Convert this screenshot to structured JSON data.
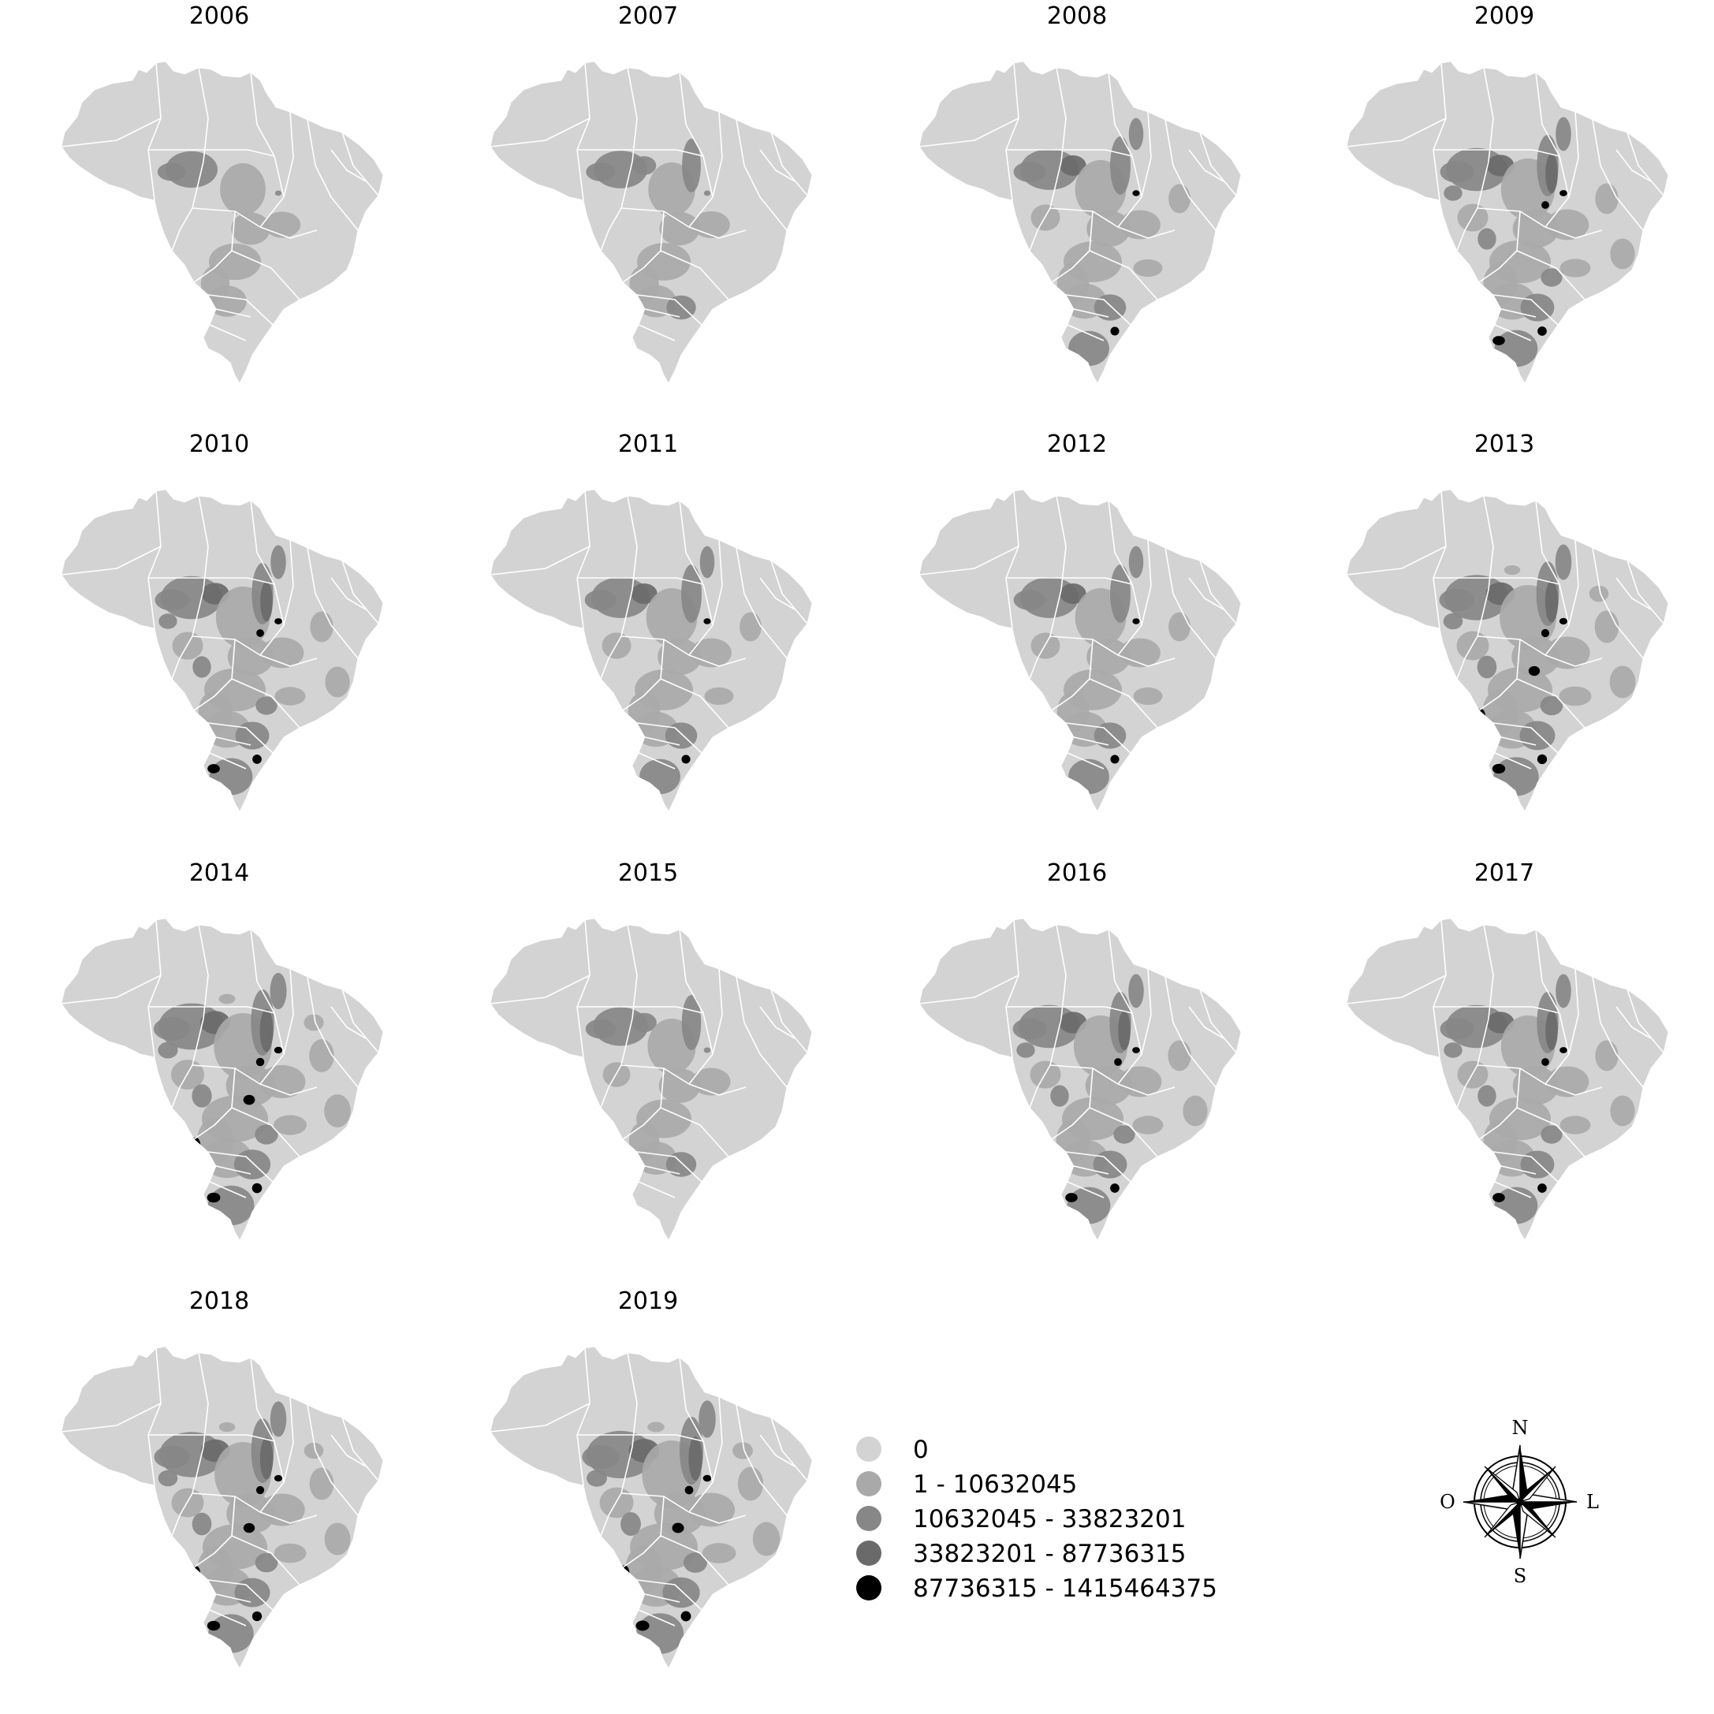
{
  "figure": {
    "panels": [
      {
        "year": "2006",
        "dark_level": 0.15
      },
      {
        "year": "2007",
        "dark_level": 0.2
      },
      {
        "year": "2008",
        "dark_level": 0.35
      },
      {
        "year": "2009",
        "dark_level": 0.45
      },
      {
        "year": "2010",
        "dark_level": 0.45
      },
      {
        "year": "2011",
        "dark_level": 0.35
      },
      {
        "year": "2012",
        "dark_level": 0.35
      },
      {
        "year": "2013",
        "dark_level": 0.55
      },
      {
        "year": "2014",
        "dark_level": 0.6
      },
      {
        "year": "2015",
        "dark_level": 0.25
      },
      {
        "year": "2016",
        "dark_level": 0.45
      },
      {
        "year": "2017",
        "dark_level": 0.45
      },
      {
        "year": "2018",
        "dark_level": 0.55
      },
      {
        "year": "2019",
        "dark_level": 0.65
      }
    ],
    "legend": [
      {
        "label": "0",
        "color": "#d3d3d3"
      },
      {
        "label": "1 - 10632045",
        "color": "#a9a9a9"
      },
      {
        "label": "10632045 - 33823201",
        "color": "#878787"
      },
      {
        "label": "33823201 - 87736315",
        "color": "#6a6a6a"
      },
      {
        "label": "87736315 - 1415464375",
        "color": "#000000"
      }
    ],
    "compass": {
      "north": "N",
      "south": "S",
      "east": "L",
      "west": "O"
    }
  }
}
